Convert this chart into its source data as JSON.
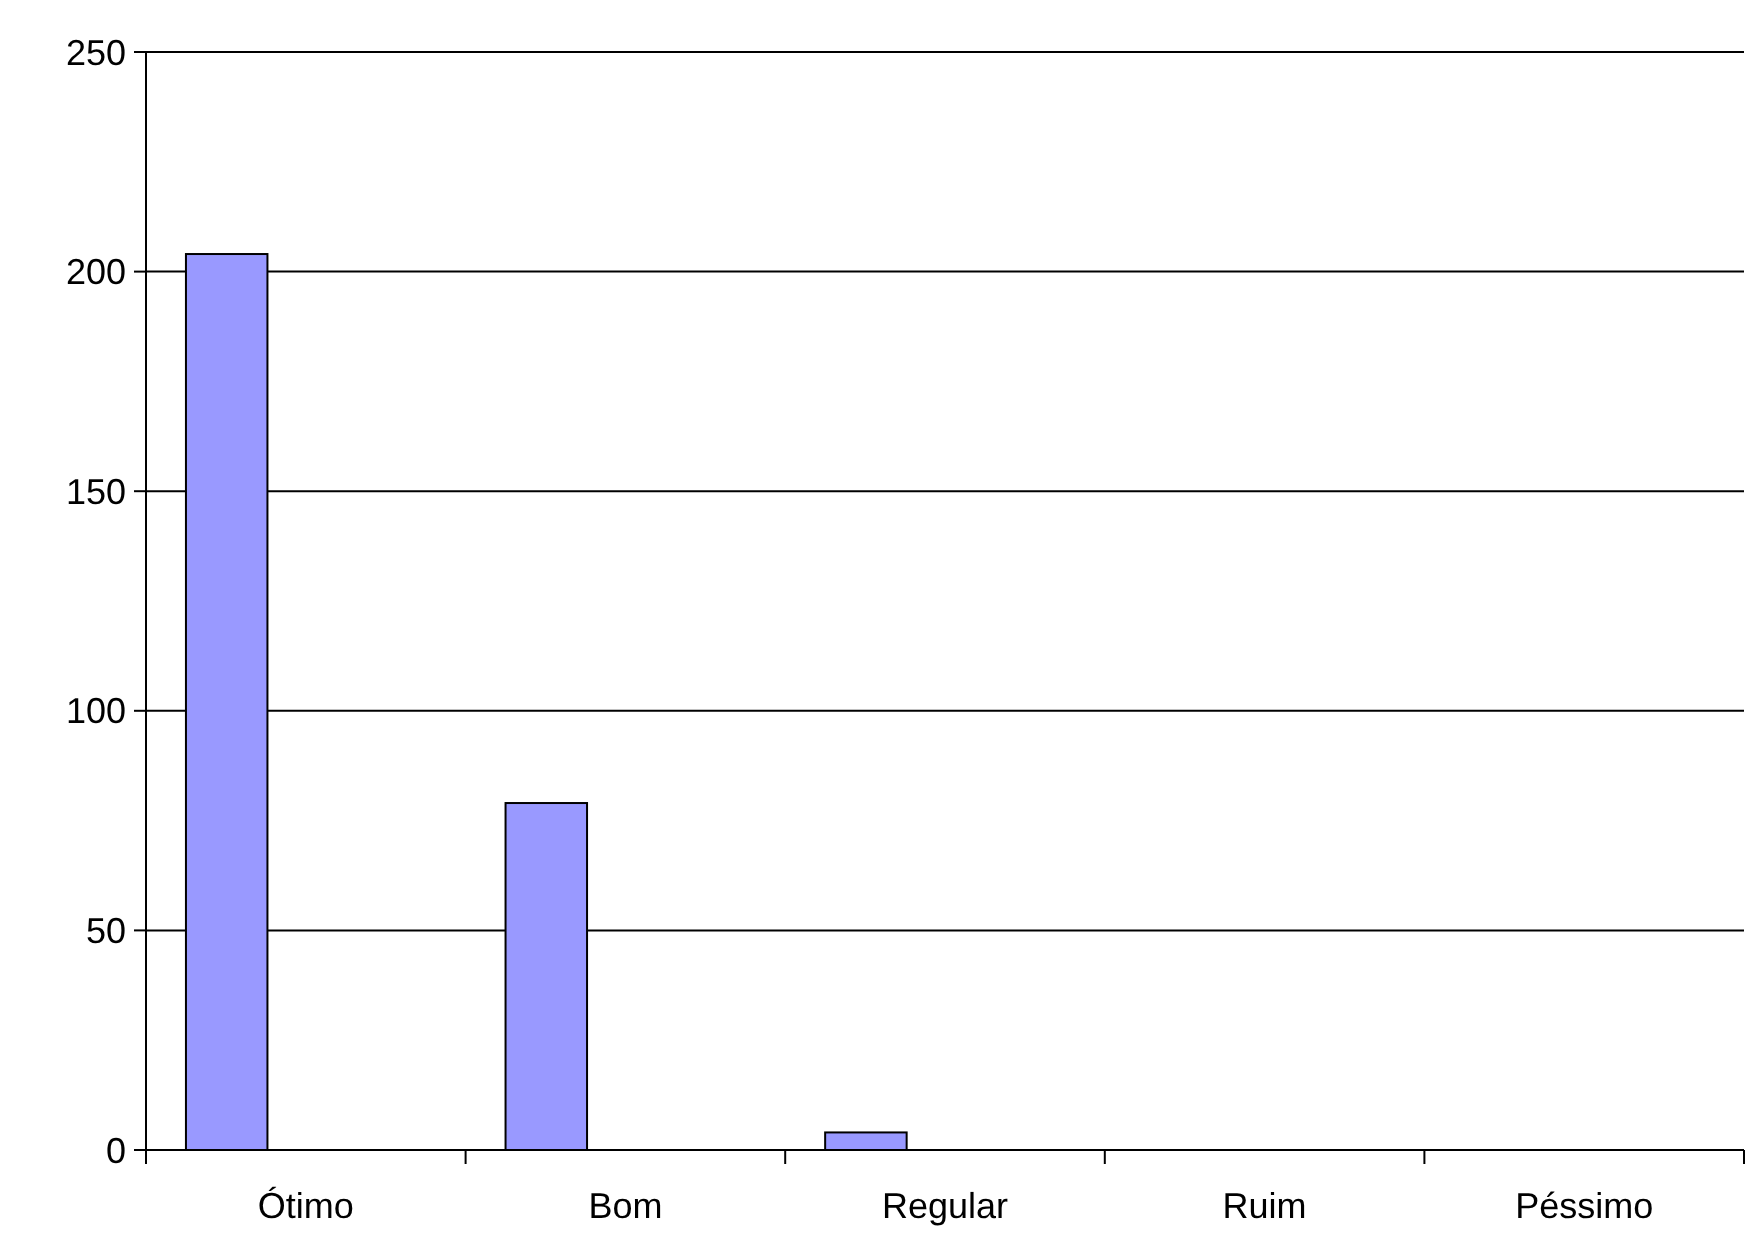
{
  "chart_data": {
    "type": "bar",
    "categories": [
      "Ótimo",
      "Bom",
      "Regular",
      "Ruim",
      "Péssimo"
    ],
    "values": [
      204,
      79,
      4,
      0,
      0
    ],
    "color": "#9999ff",
    "ylim": [
      0,
      250
    ],
    "yticks": [
      0,
      50,
      100,
      150,
      200,
      250
    ],
    "grid": "y"
  }
}
